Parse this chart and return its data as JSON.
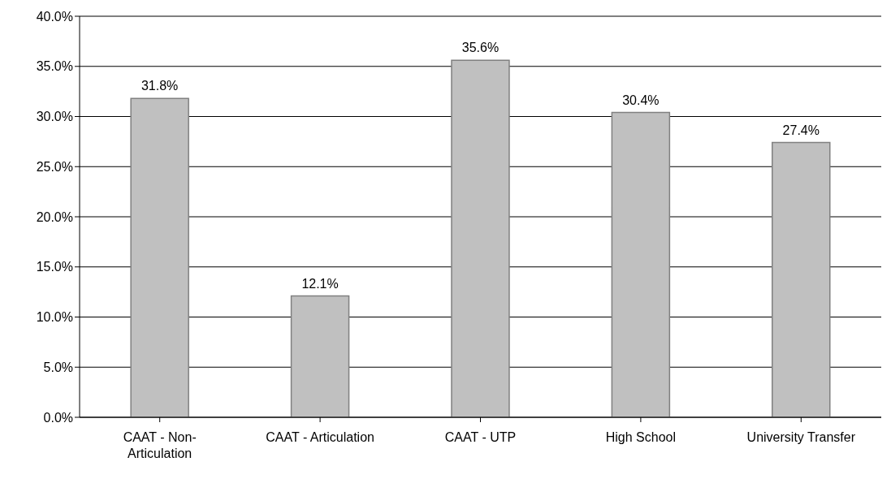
{
  "chart_data": {
    "type": "bar",
    "categories": [
      "CAAT - Non-Articulation",
      "CAAT - Articulation",
      "CAAT - UTP",
      "High School",
      "University Transfer"
    ],
    "values": [
      31.8,
      12.1,
      35.6,
      30.4,
      27.4
    ],
    "value_labels": [
      "31.8%",
      "12.1%",
      "35.6%",
      "30.4%",
      "27.4%"
    ],
    "color": "#c0c0c0",
    "ylim": [
      0,
      40
    ],
    "yticks": [
      {
        "value": 0,
        "label": "0.0%"
      },
      {
        "value": 5,
        "label": "5.0%"
      },
      {
        "value": 10,
        "label": "10.0%"
      },
      {
        "value": 15,
        "label": "15.0%"
      },
      {
        "value": 20,
        "label": "20.0%"
      },
      {
        "value": 25,
        "label": "25.0%"
      },
      {
        "value": 30,
        "label": "30.0%"
      },
      {
        "value": 35,
        "label": "35.0%"
      },
      {
        "value": 40,
        "label": "40.0%"
      }
    ],
    "grid": "y",
    "legend": false
  }
}
